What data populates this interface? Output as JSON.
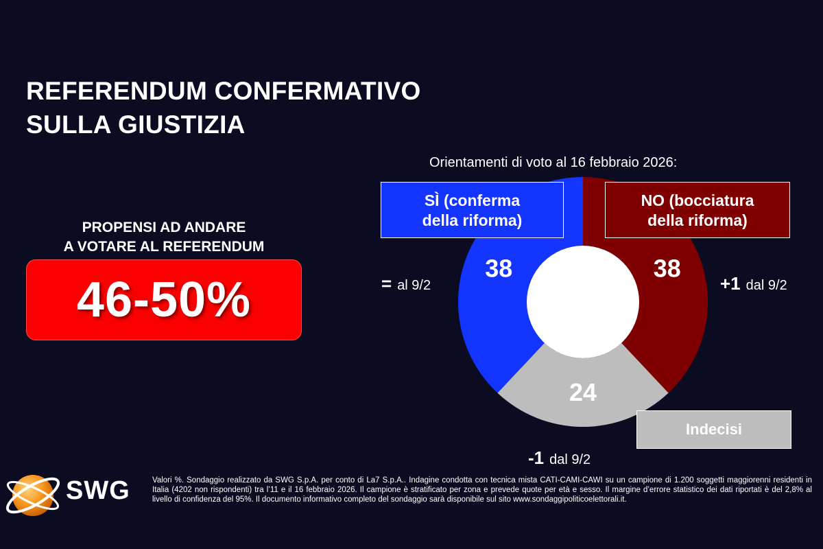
{
  "title": {
    "line1": "REFERENDUM CONFERMATIVO",
    "line2": "SULLA GIUSTIZIA"
  },
  "turnout": {
    "label_line1": "PROPENSI AD ANDARE",
    "label_line2": "A VOTARE AL REFERENDUM",
    "value": "46-50%"
  },
  "chart_data": {
    "type": "pie",
    "variant": "donut",
    "title": "Orientamenti di voto al 16 febbraio 2026:",
    "categories": [
      "SÌ (conferma della riforma)",
      "NO (bocciatura della riforma)",
      "Indecisi"
    ],
    "values": [
      38,
      38,
      24
    ],
    "value_labels": [
      "38",
      "38",
      "24"
    ],
    "colors": [
      "#1434ff",
      "#7f0000",
      "#bdbdbd"
    ],
    "legend": [
      {
        "line1": "SÌ (conferma",
        "line2": "della riforma)"
      },
      {
        "line1": "NO (bocciatura",
        "line2": "della riforma)"
      },
      {
        "line1": "Indecisi"
      }
    ],
    "annotations": [
      {
        "sign": "=",
        "text": "al 9/2"
      },
      {
        "sign": "+1",
        "text": "dal 9/2"
      },
      {
        "sign": "-1",
        "text": "dal 9/2"
      }
    ]
  },
  "logo": {
    "text": "SWG",
    "icon": "globe-icon"
  },
  "footnote": "Valori %. Sondaggio realizzato da SWG S.p.A. per conto di La7 S.p.A.. Indagine condotta con tecnica mista CATI-CAMI-CAWI su un campione di 1.200 soggetti maggiorenni residenti in Italia (4202 non rispondenti) tra l’11 e il 16 febbraio 2026. Il campione è stratificato per zona e prevede quote per età e sesso. Il margine d’errore statistico dei dati riportati è del 2,8% al livello di confidenza del 95%. Il documento informativo completo del sondaggio sarà disponibile sul sito www.sondaggipoliticoelettorali.it."
}
